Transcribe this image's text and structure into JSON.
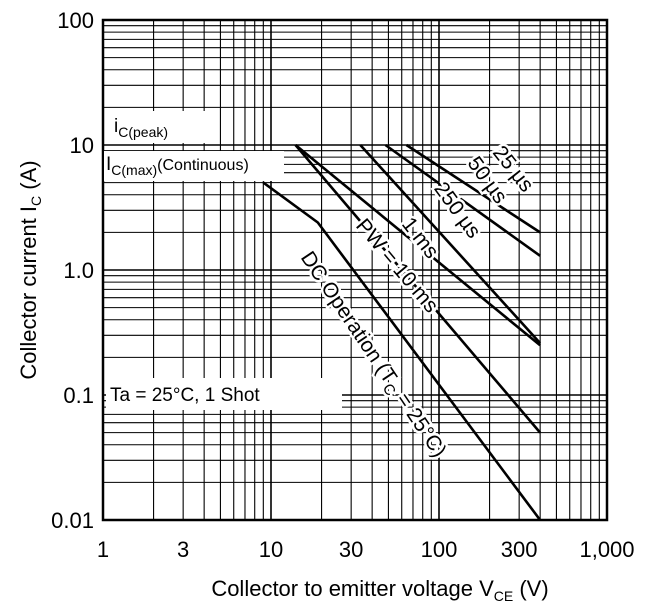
{
  "chart_data": {
    "type": "line",
    "x_scale": "log",
    "y_scale": "log",
    "xlim": [
      1,
      1000
    ],
    "ylim": [
      0.01,
      100
    ],
    "grid": true,
    "x_ticks": [
      {
        "value": 1,
        "label": "1"
      },
      {
        "value": 3,
        "label": "3"
      },
      {
        "value": 10,
        "label": "10"
      },
      {
        "value": 30,
        "label": "30"
      },
      {
        "value": 100,
        "label": "100"
      },
      {
        "value": 300,
        "label": "300"
      },
      {
        "value": 1000,
        "label": "1,000"
      }
    ],
    "y_ticks": [
      {
        "value": 100,
        "label": "100"
      },
      {
        "value": 10,
        "label": "10"
      },
      {
        "value": 1,
        "label": "1.0"
      },
      {
        "value": 0.1,
        "label": "0.1"
      },
      {
        "value": 0.01,
        "label": "0.01"
      }
    ],
    "xlabel": {
      "main": "Collector to emitter voltage  V",
      "sub": "CE",
      "unit": "  (V)"
    },
    "ylabel": {
      "main": "Collector current  I",
      "sub": "C",
      "unit": "  (A)"
    },
    "annotations": {
      "ic_peak": {
        "main": "i",
        "sub": "C(peak)"
      },
      "ic_max": {
        "main": "I",
        "sub": "C(max)",
        "suffix": "(Continuous)"
      },
      "conditions": "Ta = 25°C, 1 Shot"
    },
    "series": [
      {
        "name": "25 µs",
        "x": [
          64,
          400
        ],
        "y": [
          10,
          2
        ]
      },
      {
        "name": "50 µs",
        "x": [
          48,
          400
        ],
        "y": [
          10,
          1.3
        ]
      },
      {
        "name": "250 µs",
        "x": [
          34,
          400
        ],
        "y": [
          10,
          0.26
        ]
      },
      {
        "name": "1 ms",
        "x": [
          14,
          400
        ],
        "y": [
          10,
          0.25
        ]
      },
      {
        "name": "PW = 10 ms",
        "x": [
          14,
          400
        ],
        "y": [
          10,
          0.05
        ]
      },
      {
        "name": "DC Operation (T",
        "name_sub": "C",
        "name_suffix": " = 25°C)",
        "x": [
          9,
          19,
          400
        ],
        "y": [
          5,
          2.4,
          0.01
        ]
      }
    ]
  }
}
